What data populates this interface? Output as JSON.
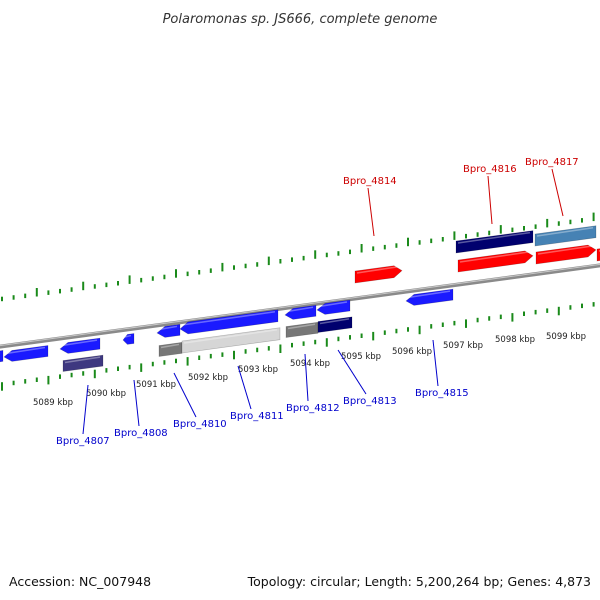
{
  "title": "Polaromonas sp. JS666, complete genome",
  "accession": "Accession: NC_007948",
  "topology": "Topology: circular; Length: 5,200,264 bp; Genes: 4,873",
  "colors": {
    "forward_label": "#cc0000",
    "reverse_label": "#0000cc",
    "tick": "#1a8a1a",
    "axis": "#8a8a8a",
    "gene_red": "#ff0000",
    "gene_blue": "#1a1aff",
    "gene_navy": "#00006e",
    "gene_steel": "#4682b4",
    "gene_gray": "#777777",
    "gene_light": "#d6d6d6",
    "gene_slate": "#3e3880"
  },
  "scale_labels": [
    "5089 kbp",
    "5090 kbp",
    "5091 kbp",
    "5092 kbp",
    "5093 kbp",
    "5094 kbp",
    "5095 kbp",
    "5096 kbp",
    "5097 kbp",
    "5098 kbp",
    "5099 kbp"
  ],
  "forward_gene_labels": [
    "Bpro_4814",
    "Bpro_4816",
    "Bpro_4817"
  ],
  "reverse_gene_labels": [
    "Bpro_4807",
    "Bpro_4808",
    "Bpro_4810",
    "Bpro_4811",
    "Bpro_4812",
    "Bpro_4813",
    "Bpro_4815"
  ]
}
